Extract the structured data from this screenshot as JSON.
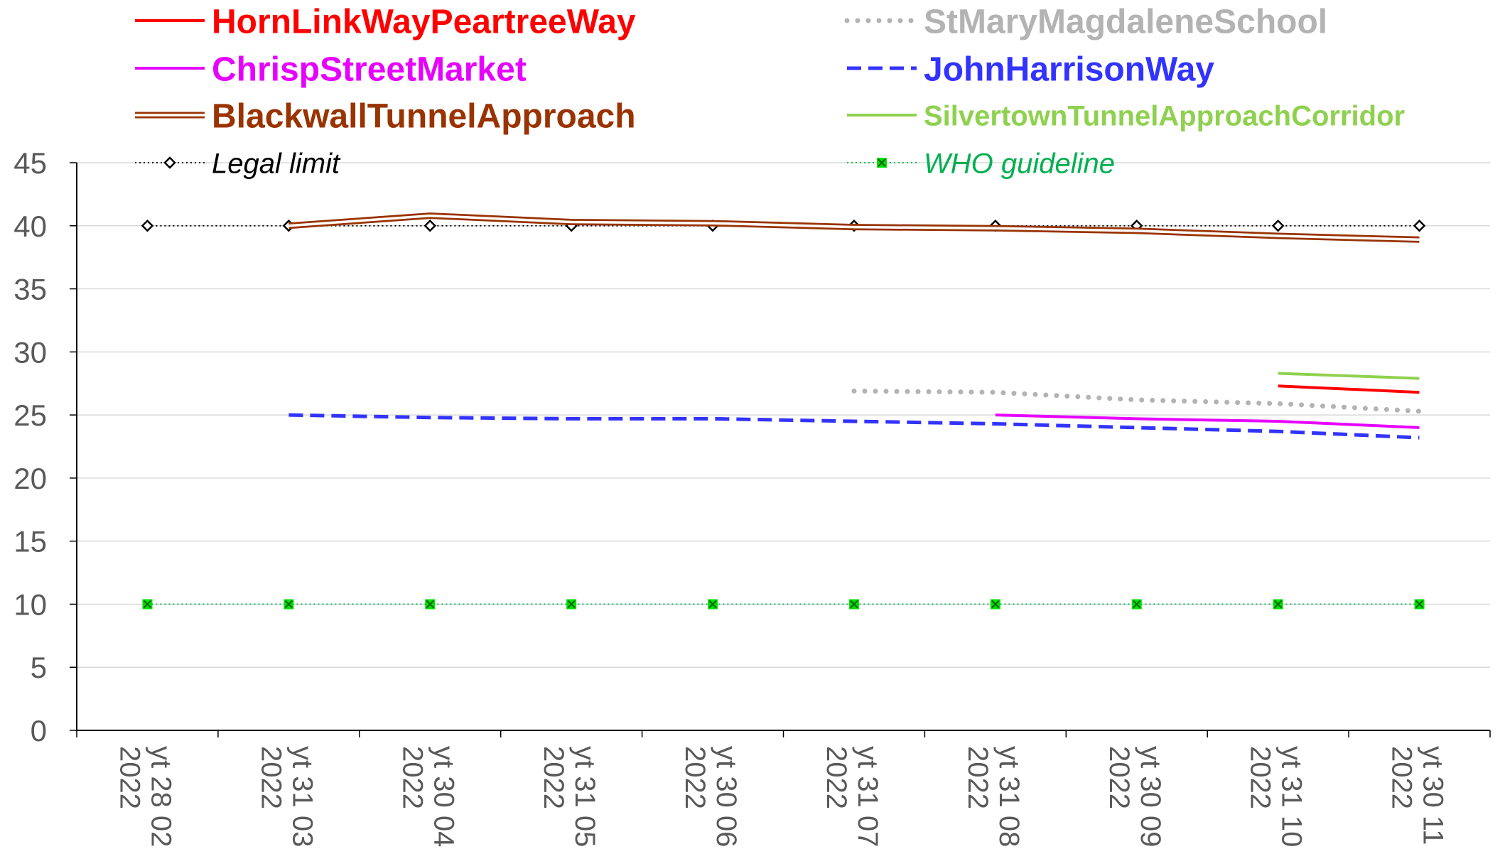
{
  "chart_data": {
    "type": "line",
    "title": "",
    "xlabel": "",
    "ylabel": "",
    "ylim": [
      0,
      45
    ],
    "yticks": [
      0,
      5,
      10,
      15,
      20,
      25,
      30,
      35,
      40,
      45
    ],
    "grid": true,
    "legend_position": "top",
    "categories": [
      "yt 28 02 2022",
      "yt 31 03 2022",
      "yt 30 04 2022",
      "yt 31 05 2022",
      "yt 30 06 2022",
      "yt 31 07 2022",
      "yt 31 08 2022",
      "yt 30 09 2022",
      "yt 31 10 2022",
      "yt 30 11 2022"
    ],
    "series": [
      {
        "name": "HornLinkWayPeartreeWay",
        "color": "#ff0000",
        "style": "solid",
        "values": [
          null,
          null,
          null,
          null,
          null,
          null,
          null,
          null,
          27.3,
          26.8
        ]
      },
      {
        "name": "StMaryMagdaleneSchool",
        "color": "#b3b3b3",
        "style": "dotted",
        "values": [
          null,
          null,
          null,
          null,
          null,
          26.9,
          26.8,
          26.2,
          25.9,
          25.3
        ]
      },
      {
        "name": "ChrispStreetMarket",
        "color": "#e600ff",
        "style": "solid",
        "values": [
          null,
          null,
          null,
          null,
          null,
          null,
          25.0,
          24.7,
          24.5,
          24.0
        ]
      },
      {
        "name": "JohnHarrisonWay",
        "color": "#3333ff",
        "style": "dashed",
        "values": [
          null,
          25.0,
          24.8,
          24.7,
          24.7,
          24.5,
          24.3,
          24.0,
          23.7,
          23.2
        ]
      },
      {
        "name": "BlackwallTunnelApproach",
        "color": "#993300",
        "style": "double",
        "values": [
          null,
          40.0,
          40.8,
          40.3,
          40.2,
          39.9,
          39.8,
          39.6,
          39.2,
          38.9
        ]
      },
      {
        "name": "SilvertownTunnelApproachCorridor",
        "color": "#8fd14f",
        "style": "solid",
        "values": [
          null,
          null,
          null,
          null,
          null,
          null,
          null,
          null,
          28.3,
          27.9
        ]
      },
      {
        "name": "Legal limit",
        "color": "#000000",
        "style": "dotted-diamond",
        "values": [
          40,
          40,
          40,
          40,
          40,
          40,
          40,
          40,
          40,
          40
        ]
      },
      {
        "name": "WHO guideline",
        "color": "#00b050",
        "style": "dotted-x",
        "values": [
          10,
          10,
          10,
          10,
          10,
          10,
          10,
          10,
          10,
          10
        ]
      }
    ]
  }
}
